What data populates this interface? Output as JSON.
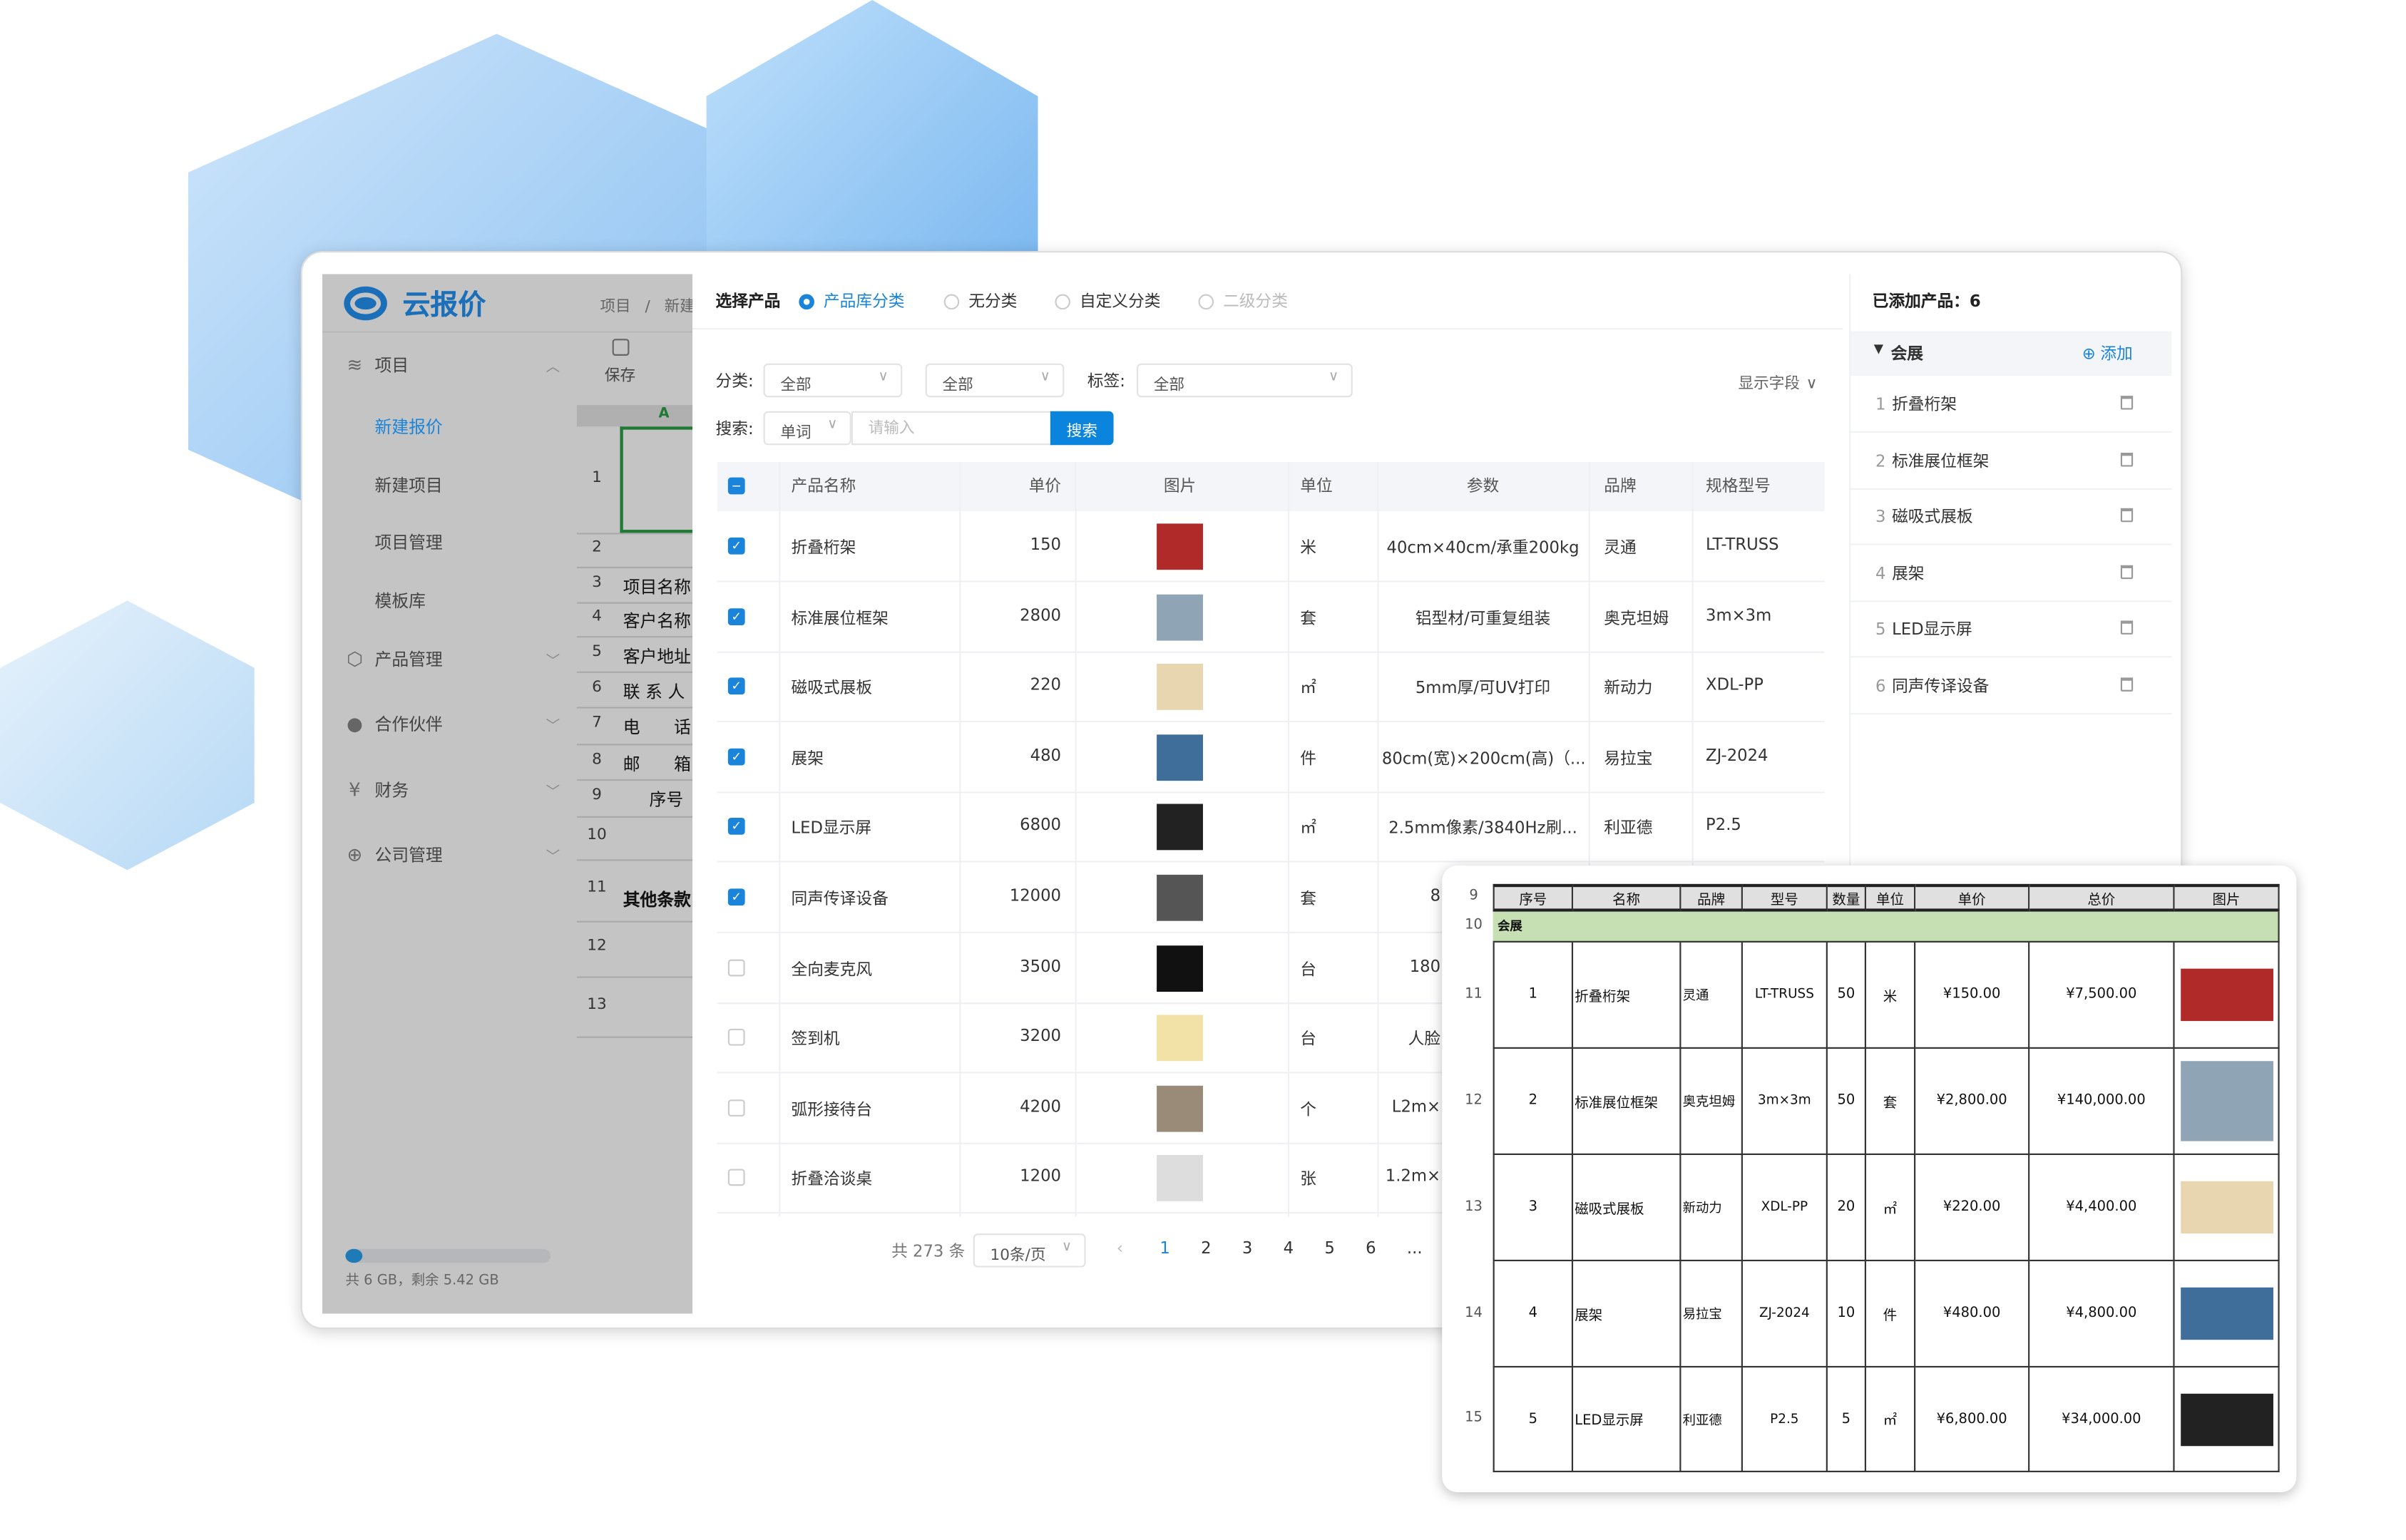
{
  "colors": {
    "accent": "#1a84db",
    "header_green": "#c6e0b4",
    "dim_overlay": "#c4c4c4"
  },
  "app": {
    "logo_text": "云报价",
    "logo_icon": "cloud-icon"
  },
  "sidebar": {
    "groups": [
      {
        "label": "项目",
        "icon": "layers-icon",
        "expanded": true
      },
      {
        "label": "产品管理",
        "icon": "box-icon"
      },
      {
        "label": "合作伙伴",
        "icon": "user-icon"
      },
      {
        "label": "财务",
        "icon": "yuan-icon"
      },
      {
        "label": "公司管理",
        "icon": "globe-icon"
      }
    ],
    "sub_items": [
      {
        "label": "新建报价",
        "active": true
      },
      {
        "label": "新建项目"
      },
      {
        "label": "项目管理"
      },
      {
        "label": "模板库"
      }
    ],
    "storage": {
      "text": "共 6 GB，剩余 5.42 GB",
      "used_fraction": 0.097
    }
  },
  "breadcrumb": [
    "项目",
    "/",
    "新建"
  ],
  "toolbar": {
    "save_label": "保存",
    "save_icon": "save-icon"
  },
  "sheet_bg": {
    "col_header": "A",
    "rows": [
      {
        "n": "1",
        "t": ""
      },
      {
        "n": "2",
        "t": ""
      },
      {
        "n": "3",
        "t": "项目名称"
      },
      {
        "n": "4",
        "t": "客户名称"
      },
      {
        "n": "5",
        "t": "客户地址"
      },
      {
        "n": "6",
        "t": "联 系 人"
      },
      {
        "n": "7",
        "t": "电　　话"
      },
      {
        "n": "8",
        "t": "邮　　箱"
      },
      {
        "n": "9",
        "t": "序号"
      },
      {
        "n": "10",
        "t": ""
      },
      {
        "n": "11",
        "t": "其他条款"
      },
      {
        "n": "12",
        "t": ""
      },
      {
        "n": "13",
        "t": ""
      }
    ]
  },
  "selector": {
    "title": "选择产品",
    "modes": [
      {
        "label": "产品库分类",
        "checked": true
      },
      {
        "label": "无分类"
      },
      {
        "label": "自定义分类"
      },
      {
        "label": "二级分类",
        "disabled": true
      }
    ],
    "category_label": "分类:",
    "category1": "全部",
    "category2": "全部",
    "tag_label": "标签:",
    "tag": "全部",
    "display_fields": "显示字段",
    "search_label": "搜索:",
    "search_mode": "单词",
    "search_placeholder": "请输入",
    "search_button": "搜索"
  },
  "table": {
    "headers": [
      "产品名称",
      "单价",
      "图片",
      "单位",
      "参数",
      "品牌",
      "规格型号"
    ],
    "rows": [
      {
        "checked": true,
        "name": "折叠桁架",
        "price": "150",
        "unit": "米",
        "param": "40cm×40cm/承重200kg",
        "brand": "灵通",
        "model": "LT-TRUSS",
        "img": "#b02a2a"
      },
      {
        "checked": true,
        "name": "标准展位框架",
        "price": "2800",
        "unit": "套",
        "param": "铝型材/可重复组装",
        "brand": "奥克坦姆",
        "model": "3m×3m",
        "img": "#8fa4b4"
      },
      {
        "checked": true,
        "name": "磁吸式展板",
        "price": "220",
        "unit": "㎡",
        "param": "5mm厚/可UV打印",
        "brand": "新动力",
        "model": "XDL-PP",
        "img": "#e8d6b0"
      },
      {
        "checked": true,
        "name": "展架",
        "price": "480",
        "unit": "件",
        "param": "80cm(宽)×200cm(高)（...",
        "brand": "易拉宝",
        "model": "ZJ-2024",
        "img": "#3f6e9a"
      },
      {
        "checked": true,
        "name": "LED显示屏",
        "price": "6800",
        "unit": "㎡",
        "param": "2.5mm像素/3840Hz刷...",
        "brand": "利亚德",
        "model": "P2.5",
        "img": "#222"
      },
      {
        "checked": true,
        "name": "同声传译设备",
        "price": "12000",
        "unit": "套",
        "param": "8",
        "brand": "",
        "model": "",
        "img": "#555"
      },
      {
        "checked": false,
        "name": "全向麦克风",
        "price": "3500",
        "unit": "台",
        "param": "180",
        "brand": "",
        "model": "",
        "img": "#111"
      },
      {
        "checked": false,
        "name": "签到机",
        "price": "3200",
        "unit": "台",
        "param": "人脸",
        "brand": "",
        "model": "",
        "img": "#f3e2a8"
      },
      {
        "checked": false,
        "name": "弧形接待台",
        "price": "4200",
        "unit": "个",
        "param": "L2m×",
        "brand": "",
        "model": "",
        "img": "#9a8a78"
      },
      {
        "checked": false,
        "name": "折叠洽谈桌",
        "price": "1200",
        "unit": "张",
        "param": "1.2m×",
        "brand": "",
        "model": "",
        "img": "#ddd"
      }
    ]
  },
  "pagination": {
    "total": "共 273 条",
    "page_size": "10条/页",
    "pages": [
      "1",
      "2",
      "3",
      "4",
      "5",
      "6",
      "..."
    ],
    "current": "1"
  },
  "added": {
    "title": "已添加产品：6",
    "group": "会展",
    "add_label": "添加",
    "items": [
      {
        "n": "1",
        "name": "折叠桁架"
      },
      {
        "n": "2",
        "name": "标准展位框架"
      },
      {
        "n": "3",
        "name": "磁吸式展板"
      },
      {
        "n": "4",
        "name": "展架"
      },
      {
        "n": "5",
        "name": "LED显示屏"
      },
      {
        "n": "6",
        "name": "同声传译设备"
      }
    ]
  },
  "quote_sheet": {
    "header_row": "9",
    "group_row": "10",
    "group": "会展",
    "headers": [
      "序号",
      "名称",
      "品牌",
      "型号",
      "数量",
      "单位",
      "单价",
      "总价",
      "图片"
    ],
    "rows": [
      {
        "row": "11",
        "cells": [
          "1",
          "折叠桁架",
          "灵通",
          "LT-TRUSS",
          "50",
          "米",
          "¥150.00",
          "¥7,500.00"
        ],
        "img": "#b02a2a"
      },
      {
        "row": "12",
        "cells": [
          "2",
          "标准展位框架",
          "奥克坦姆",
          "3m×3m",
          "50",
          "套",
          "¥2,800.00",
          "¥140,000.00"
        ],
        "img": "#8fa4b4"
      },
      {
        "row": "13",
        "cells": [
          "3",
          "磁吸式展板",
          "新动力",
          "XDL-PP",
          "20",
          "㎡",
          "¥220.00",
          "¥4,400.00"
        ],
        "img": "#e8d6b0"
      },
      {
        "row": "14",
        "cells": [
          "4",
          "展架",
          "易拉宝",
          "ZJ-2024",
          "10",
          "件",
          "¥480.00",
          "¥4,800.00"
        ],
        "img": "#3f6e9a"
      },
      {
        "row": "15",
        "cells": [
          "5",
          "LED显示屏",
          "利亚德",
          "P2.5",
          "5",
          "㎡",
          "¥6,800.00",
          "¥34,000.00"
        ],
        "img": "#222"
      }
    ]
  }
}
